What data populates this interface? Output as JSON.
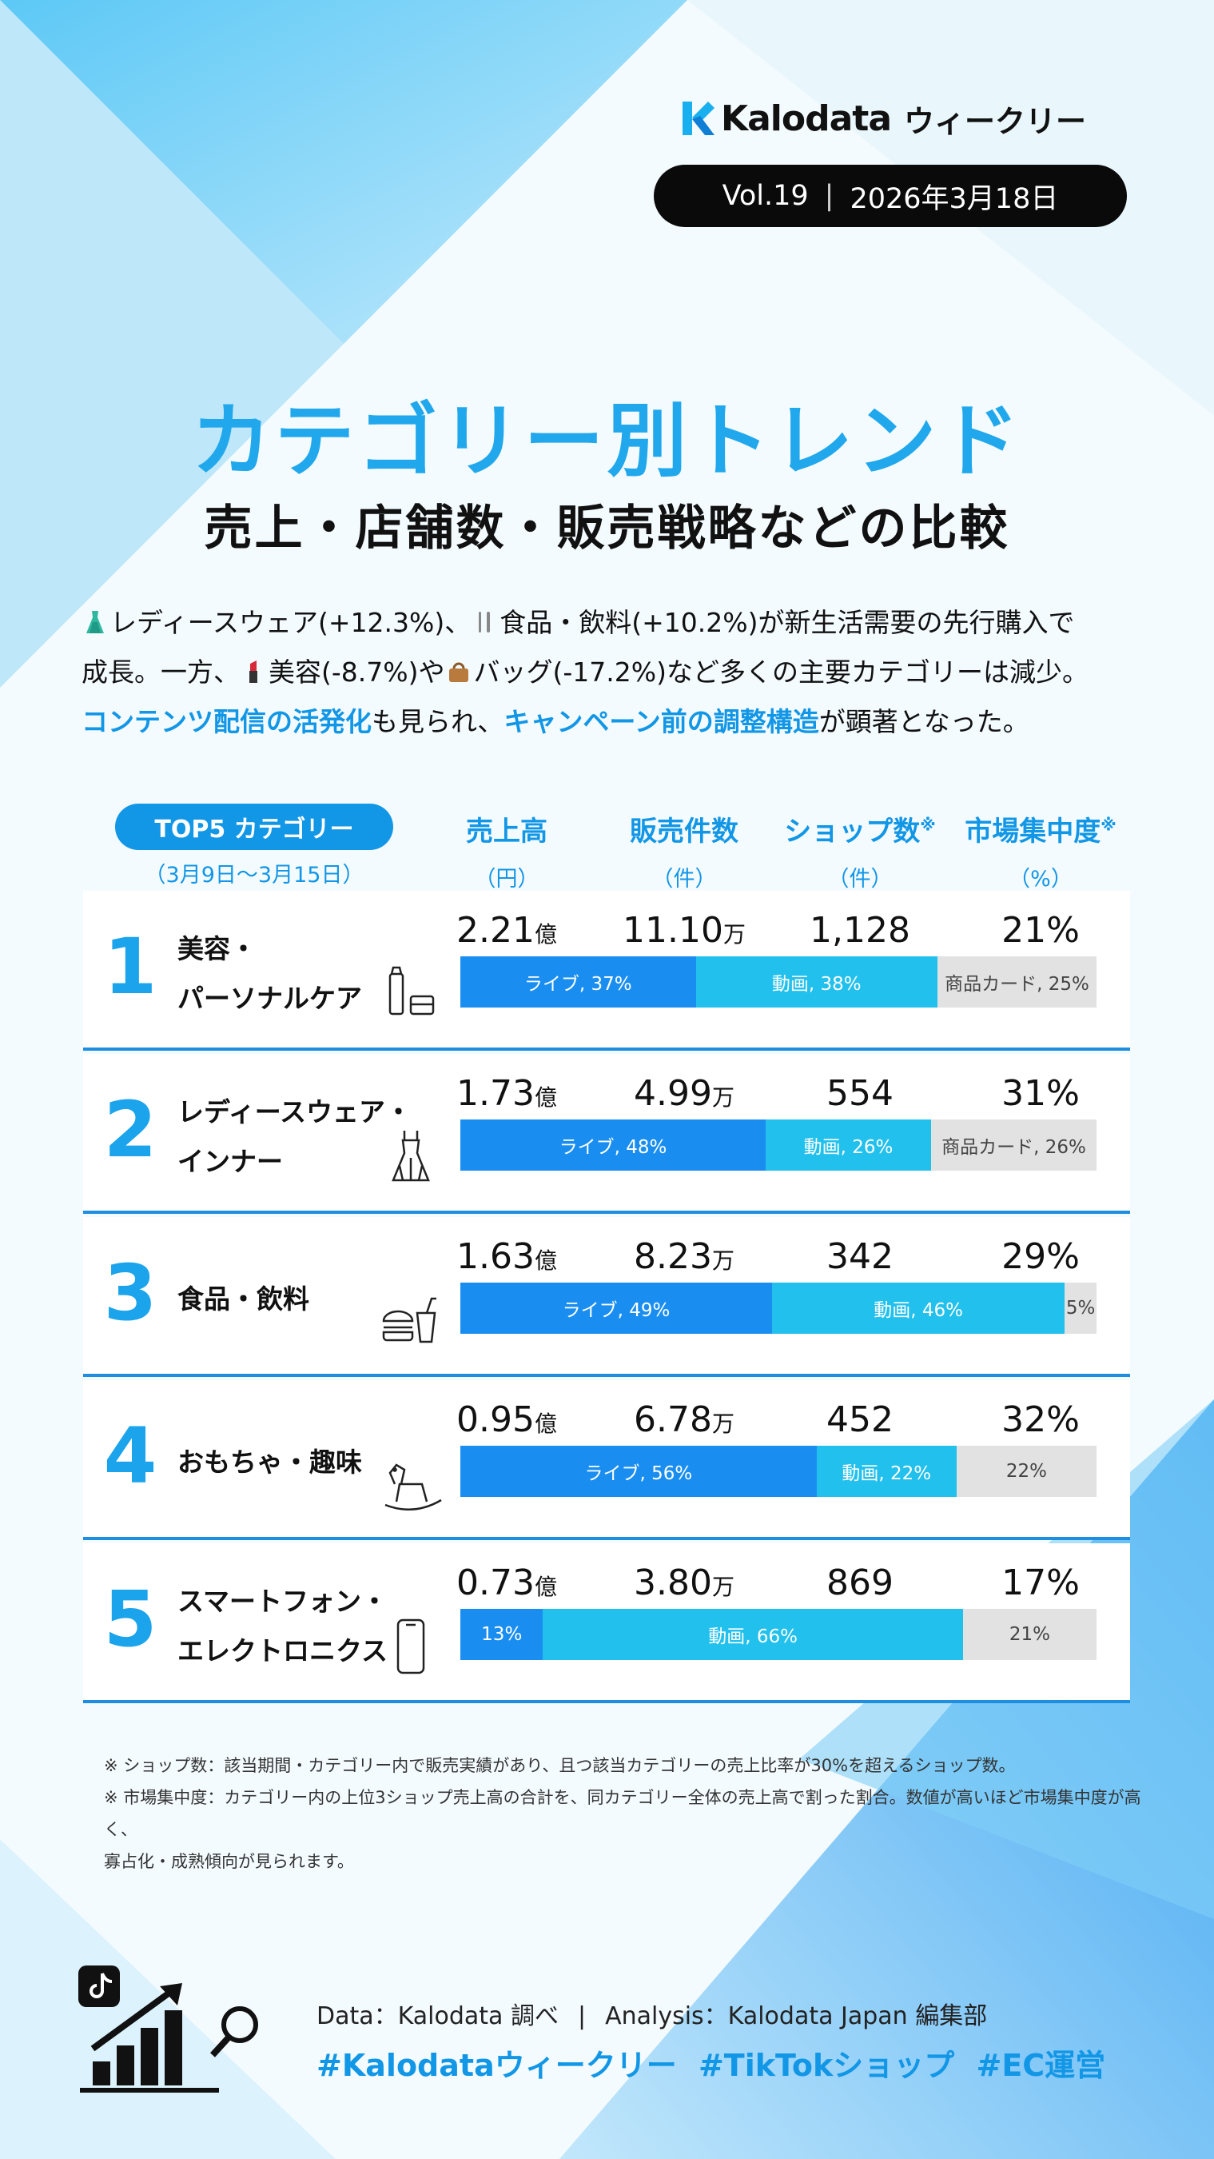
{
  "header": {
    "brand": "Kalodata",
    "brand_suffix": "ウィークリー",
    "volume": "Vol.19",
    "date": "2026年3月18日"
  },
  "title": "カテゴリー別トレンド",
  "subtitle": "売上・店舗数・販売戦略などの比較",
  "intro": {
    "p1a": "レディースウェア(+12.3%)、",
    "p1b": "食品・飲料(+10.2%)が新生活需要の先行購入で",
    "p2a": "成長。一方、",
    "p2b": "美容(-8.7%)や",
    "p2c": "バッグ(-17.2%)など多くの主要カテゴリーは減少。",
    "hl1": "コンテンツ配信の活発化",
    "p3a": "も見られ、",
    "hl2": "キャンペーン前の調整構造",
    "p3b": "が顕著となった。"
  },
  "table_header": {
    "top5": "TOP5 カテゴリー",
    "period": "（3月9日〜3月15日）",
    "sales": "売上高",
    "sales_unit": "（円）",
    "items": "販売件数",
    "items_unit": "（件）",
    "shops": "ショップ数",
    "shops_unit": "（件）",
    "concentration": "市場集中度",
    "concentration_unit": "（%）",
    "mark": "※"
  },
  "rows": [
    {
      "rank": "1",
      "name1": "美容・",
      "name2": "パーソナルケア",
      "icon": "cosmetics-icon",
      "sales": "2.21",
      "sales_unit": "億",
      "items": "11.10",
      "items_unit": "万",
      "shops": "1,128",
      "concentration": "21%",
      "share": [
        {
          "type": "live",
          "value": 37,
          "label": "ライブ, 37%"
        },
        {
          "type": "video",
          "value": 38,
          "label": "動画, 38%"
        },
        {
          "type": "card",
          "value": 25,
          "label": "商品カード, 25%"
        }
      ]
    },
    {
      "rank": "2",
      "name1": "レディースウェア・",
      "name2": "インナー",
      "icon": "dress-icon",
      "sales": "1.73",
      "sales_unit": "億",
      "items": "4.99",
      "items_unit": "万",
      "shops": "554",
      "concentration": "31%",
      "share": [
        {
          "type": "live",
          "value": 48,
          "label": "ライブ, 48%"
        },
        {
          "type": "video",
          "value": 26,
          "label": "動画, 26%"
        },
        {
          "type": "card",
          "value": 26,
          "label": "商品カード, 26%"
        }
      ]
    },
    {
      "rank": "3",
      "name1": "食品・飲料",
      "name2": "",
      "icon": "burger-drink-icon",
      "sales": "1.63",
      "sales_unit": "億",
      "items": "8.23",
      "items_unit": "万",
      "shops": "342",
      "concentration": "29%",
      "share": [
        {
          "type": "live",
          "value": 49,
          "label": "ライブ, 49%"
        },
        {
          "type": "video",
          "value": 46,
          "label": "動画, 46%"
        },
        {
          "type": "card",
          "value": 5,
          "label": "5%"
        }
      ]
    },
    {
      "rank": "4",
      "name1": "おもちゃ・趣味",
      "name2": "",
      "icon": "rocking-horse-icon",
      "sales": "0.95",
      "sales_unit": "億",
      "items": "6.78",
      "items_unit": "万",
      "shops": "452",
      "concentration": "32%",
      "share": [
        {
          "type": "live",
          "value": 56,
          "label": "ライブ, 56%"
        },
        {
          "type": "video",
          "value": 22,
          "label": "動画, 22%"
        },
        {
          "type": "card",
          "value": 22,
          "label": "22%"
        }
      ]
    },
    {
      "rank": "5",
      "name1": "スマートフォン・",
      "name2": "エレクトロニクス",
      "icon": "smartphone-icon",
      "sales": "0.73",
      "sales_unit": "億",
      "items": "3.80",
      "items_unit": "万",
      "shops": "869",
      "concentration": "17%",
      "share": [
        {
          "type": "live",
          "value": 13,
          "label": "13%"
        },
        {
          "type": "video",
          "value": 66,
          "label": "動画, 66%"
        },
        {
          "type": "card",
          "value": 21,
          "label": "21%"
        }
      ]
    }
  ],
  "notes": {
    "n1": "※ ショップ数：該当期間・カテゴリー内で販売実績があり、且つ該当カテゴリーの売上比率が30%を超えるショップ数。",
    "n2": "※ 市場集中度：カテゴリー内の上位3ショップ売上高の合計を、同カテゴリー全体の売上高で割った割合。数値が高いほど市場集中度が高く、",
    "n3": "寡占化・成熟傾向が見られます。"
  },
  "footer": {
    "data": "Data：Kalodata 調べ",
    "sep": "|",
    "analysis": "Analysis：Kalodata Japan 編集部",
    "tags": "#Kalodataウィークリー #TikTokショップ #EC運営"
  },
  "colors": {
    "accent": "#1296e6",
    "live": "#1a8ef0",
    "video": "#22c0ec",
    "card": "#e2e2e2",
    "rule": "#1e8ee0"
  }
}
